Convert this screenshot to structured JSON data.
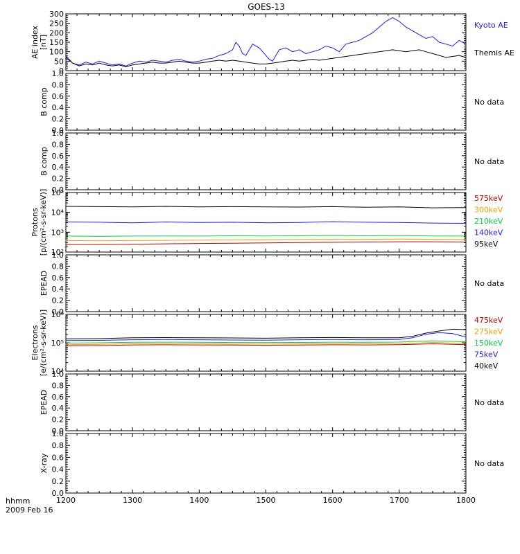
{
  "title": "GOES-13",
  "colors": {
    "black": "#000000",
    "blue": "#1a1aff",
    "green": "#00d040",
    "orange": "#f0a000",
    "red": "#c00000"
  },
  "chart_data": [
    {
      "type": "line",
      "id": "ae",
      "ylabel": [
        "AE index",
        "[nT]"
      ],
      "ylim": [
        0,
        300
      ],
      "yticks": [
        "0",
        "50",
        "100",
        "150",
        "200",
        "250",
        "300"
      ],
      "series": [
        {
          "name": "Kyoto AE",
          "color": "blue",
          "x": [
            1200,
            1210,
            1220,
            1230,
            1240,
            1250,
            1260,
            1270,
            1280,
            1290,
            1300,
            1310,
            1320,
            1330,
            1340,
            1350,
            1360,
            1370,
            1380,
            1390,
            1400,
            1410,
            1420,
            1430,
            1440,
            1450,
            1455,
            1460,
            1465,
            1470,
            1480,
            1490,
            1500,
            1505,
            1510,
            1520,
            1530,
            1540,
            1550,
            1560,
            1570,
            1580,
            1590,
            1600,
            1610,
            1620,
            1630,
            1640,
            1650,
            1660,
            1670,
            1680,
            1690,
            1700,
            1710,
            1720,
            1730,
            1740,
            1750,
            1760,
            1770,
            1780,
            1790,
            1800
          ],
          "y": [
            80,
            40,
            30,
            45,
            35,
            50,
            40,
            30,
            35,
            25,
            40,
            50,
            45,
            55,
            50,
            45,
            55,
            60,
            50,
            45,
            50,
            60,
            65,
            80,
            90,
            110,
            150,
            130,
            90,
            80,
            140,
            120,
            80,
            60,
            50,
            110,
            120,
            100,
            110,
            90,
            100,
            110,
            130,
            120,
            100,
            140,
            150,
            160,
            180,
            200,
            230,
            260,
            280,
            260,
            230,
            210,
            190,
            170,
            180,
            150,
            140,
            130,
            160,
            140
          ]
        },
        {
          "name": "Themis AE",
          "color": "black",
          "x": [
            1200,
            1210,
            1220,
            1230,
            1240,
            1250,
            1260,
            1270,
            1280,
            1290,
            1300,
            1310,
            1320,
            1330,
            1340,
            1350,
            1360,
            1370,
            1380,
            1390,
            1400,
            1410,
            1420,
            1430,
            1440,
            1450,
            1460,
            1470,
            1480,
            1490,
            1500,
            1510,
            1520,
            1530,
            1540,
            1550,
            1560,
            1570,
            1580,
            1590,
            1600,
            1610,
            1620,
            1630,
            1640,
            1650,
            1660,
            1670,
            1680,
            1690,
            1700,
            1710,
            1720,
            1730,
            1740,
            1750,
            1760,
            1770,
            1780,
            1790,
            1800
          ],
          "y": [
            70,
            40,
            25,
            35,
            30,
            40,
            30,
            25,
            30,
            20,
            30,
            35,
            40,
            45,
            40,
            40,
            45,
            50,
            45,
            40,
            40,
            45,
            50,
            55,
            50,
            55,
            50,
            45,
            40,
            35,
            35,
            40,
            45,
            50,
            55,
            50,
            55,
            60,
            55,
            60,
            65,
            70,
            75,
            80,
            85,
            90,
            95,
            100,
            105,
            110,
            105,
            100,
            105,
            110,
            100,
            90,
            80,
            70,
            75,
            80,
            70
          ]
        }
      ],
      "side_labels": [
        {
          "text": "Kyoto AE",
          "color": "blue"
        },
        {
          "text": "Themis AE",
          "color": "black"
        }
      ]
    },
    {
      "type": "line",
      "id": "bcomp1",
      "ylabel": [
        "B comp"
      ],
      "ylim": [
        0,
        1
      ],
      "yticks": [
        "0.0",
        "0.2",
        "0.4",
        "0.6",
        "0.8",
        "1.0"
      ],
      "series": [],
      "side_labels": [
        {
          "text": "No data",
          "color": "black"
        }
      ]
    },
    {
      "type": "line",
      "id": "bcomp2",
      "ylabel": [
        "B comp"
      ],
      "ylim": [
        0,
        1
      ],
      "yticks": [
        "0.0",
        "0.2",
        "0.4",
        "0.6",
        "0.8",
        "1.0"
      ],
      "series": [],
      "side_labels": [
        {
          "text": "No data",
          "color": "black"
        }
      ]
    },
    {
      "type": "line",
      "id": "protons",
      "log": true,
      "ylabel": [
        "Protons",
        "[p/(cm²-s-sr-keV)]"
      ],
      "ylim": [
        100,
        100000
      ],
      "yticks": [
        "10²",
        "10³",
        "10⁴",
        "10⁵"
      ],
      "series": [
        {
          "name": "95keV",
          "color": "black",
          "x": [
            1200,
            1250,
            1300,
            1350,
            1400,
            1450,
            1500,
            1550,
            1600,
            1650,
            1700,
            1750,
            1800
          ],
          "y": [
            20000,
            19500,
            19000,
            20000,
            19000,
            19500,
            19000,
            18500,
            19500,
            18000,
            19000,
            17000,
            17500
          ]
        },
        {
          "name": "140keV",
          "color": "blue",
          "x": [
            1200,
            1250,
            1300,
            1350,
            1400,
            1450,
            1500,
            1550,
            1600,
            1650,
            1700,
            1750,
            1800
          ],
          "y": [
            3300,
            3200,
            3000,
            3300,
            3100,
            3200,
            3000,
            3100,
            3400,
            3200,
            3100,
            2900,
            2800
          ]
        },
        {
          "name": "210keV",
          "color": "green",
          "x": [
            1200,
            1250,
            1300,
            1350,
            1400,
            1450,
            1500,
            1550,
            1600,
            1650,
            1700,
            1750,
            1800
          ],
          "y": [
            640,
            620,
            640,
            650,
            640,
            660,
            650,
            660,
            680,
            660,
            670,
            650,
            640
          ]
        },
        {
          "name": "300keV",
          "color": "orange",
          "x": [
            1200,
            1250,
            1300,
            1350,
            1400,
            1450,
            1500,
            1550,
            1600,
            1650,
            1700,
            1750,
            1800
          ],
          "y": [
            380,
            370,
            380,
            390,
            400,
            410,
            420,
            430,
            440,
            440,
            450,
            440,
            430
          ]
        },
        {
          "name": "575keV",
          "color": "red",
          "x": [
            1200,
            1250,
            1300,
            1350,
            1400,
            1450,
            1500,
            1550,
            1600,
            1650,
            1700,
            1750,
            1800
          ],
          "y": [
            240,
            240,
            250,
            260,
            270,
            280,
            290,
            300,
            310,
            320,
            330,
            330,
            320
          ]
        }
      ],
      "side_labels": [
        {
          "text": "575keV",
          "color": "red"
        },
        {
          "text": "300keV",
          "color": "orange"
        },
        {
          "text": "210keV",
          "color": "green"
        },
        {
          "text": "140keV",
          "color": "blue"
        },
        {
          "text": "95keV",
          "color": "black"
        }
      ]
    },
    {
      "type": "line",
      "id": "epead1",
      "ylabel": [
        "EPEAD"
      ],
      "ylim": [
        0,
        1
      ],
      "yticks": [
        "0.0",
        "0.2",
        "0.4",
        "0.6",
        "0.8",
        "1.0"
      ],
      "series": [],
      "side_labels": [
        {
          "text": "No data",
          "color": "black"
        }
      ]
    },
    {
      "type": "line",
      "id": "electrons",
      "log": true,
      "ylabel": [
        "Electrons",
        "[e/(cm²-s-sr-keV)]"
      ],
      "ylim": [
        10000,
        1000000
      ],
      "yticks": [
        "10⁴",
        "10⁵",
        "10⁶"
      ],
      "series": [
        {
          "name": "40keV",
          "color": "black",
          "x": [
            1200,
            1250,
            1300,
            1350,
            1400,
            1450,
            1500,
            1550,
            1600,
            1650,
            1700,
            1720,
            1740,
            1760,
            1780,
            1800
          ],
          "y": [
            138000,
            140000,
            150000,
            152000,
            150000,
            148000,
            145000,
            150000,
            153000,
            150000,
            150000,
            170000,
            220000,
            260000,
            300000,
            290000
          ]
        },
        {
          "name": "75keV",
          "color": "blue",
          "x": [
            1200,
            1250,
            1300,
            1350,
            1400,
            1450,
            1500,
            1550,
            1600,
            1650,
            1700,
            1720,
            1740,
            1760,
            1780,
            1800
          ],
          "y": [
            120000,
            122000,
            128000,
            130000,
            128000,
            125000,
            124000,
            128000,
            130000,
            128000,
            130000,
            150000,
            200000,
            230000,
            210000,
            160000
          ]
        },
        {
          "name": "150keV",
          "color": "green",
          "x": [
            1200,
            1250,
            1300,
            1350,
            1400,
            1450,
            1500,
            1550,
            1600,
            1650,
            1700,
            1750,
            1800
          ],
          "y": [
            98000,
            100000,
            104000,
            105000,
            104000,
            102000,
            101000,
            103000,
            105000,
            104000,
            106000,
            118000,
            108000
          ]
        },
        {
          "name": "275keV",
          "color": "orange",
          "x": [
            1200,
            1250,
            1300,
            1350,
            1400,
            1450,
            1500,
            1550,
            1600,
            1650,
            1700,
            1750,
            1800
          ],
          "y": [
            86000,
            88000,
            92000,
            93000,
            92000,
            90000,
            90000,
            91000,
            93000,
            92000,
            94000,
            102000,
            95000
          ]
        },
        {
          "name": "475keV",
          "color": "red",
          "x": [
            1200,
            1250,
            1300,
            1350,
            1400,
            1450,
            1500,
            1550,
            1600,
            1650,
            1700,
            1750,
            1800
          ],
          "y": [
            78000,
            80000,
            84000,
            85000,
            84000,
            83000,
            82000,
            83000,
            85000,
            84000,
            86000,
            92000,
            86000
          ]
        }
      ],
      "side_labels": [
        {
          "text": "475keV",
          "color": "red"
        },
        {
          "text": "275keV",
          "color": "orange"
        },
        {
          "text": "150keV",
          "color": "green"
        },
        {
          "text": "75keV",
          "color": "blue"
        },
        {
          "text": "40keV",
          "color": "black"
        }
      ]
    },
    {
      "type": "line",
      "id": "epead2",
      "ylabel": [
        "EPEAD"
      ],
      "ylim": [
        0,
        1
      ],
      "yticks": [
        "0.0",
        "0.2",
        "0.4",
        "0.6",
        "0.8",
        "1.0"
      ],
      "series": [],
      "side_labels": [
        {
          "text": "No data",
          "color": "black"
        }
      ]
    },
    {
      "type": "line",
      "id": "xray",
      "ylabel": [
        "X-ray"
      ],
      "ylim": [
        0,
        1
      ],
      "yticks": [
        "0.0",
        "0.2",
        "0.4",
        "0.6",
        "0.8",
        "1.0"
      ],
      "series": [],
      "side_labels": [
        {
          "text": "No data",
          "color": "black"
        }
      ]
    }
  ],
  "x_axis": {
    "xlim": [
      1200,
      1800
    ],
    "ticks": [
      1200,
      1300,
      1400,
      1500,
      1600,
      1700,
      1800
    ],
    "tick_labels": [
      "1200",
      "1300",
      "1400",
      "1500",
      "1600",
      "1700",
      "1800"
    ],
    "label": "hhmm",
    "date": "2009 Feb 16"
  }
}
